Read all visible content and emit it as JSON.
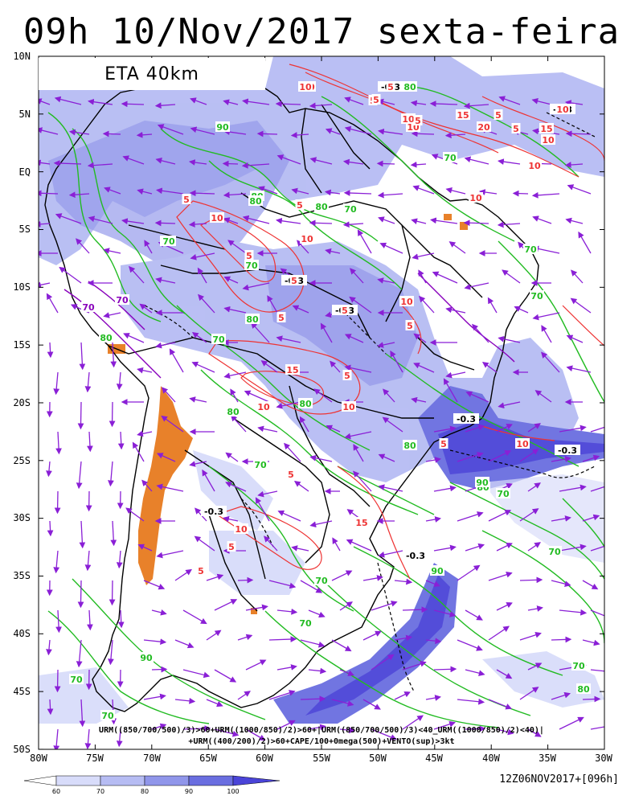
{
  "title": "09h 10/Nov/2017 sexta-feira",
  "model_label": "ETA 40km",
  "lat_ticks": [
    "10N",
    "5N",
    "EQ",
    "5S",
    "10S",
    "15S",
    "20S",
    "25S",
    "30S",
    "35S",
    "40S",
    "45S",
    "50S"
  ],
  "lon_ticks": [
    "80W",
    "75W",
    "70W",
    "65W",
    "60W",
    "55W",
    "50W",
    "45W",
    "40W",
    "35W",
    "30W"
  ],
  "formula_line1": "URM((850/700/500)/3)>60+URM((1000/850)/2)>60+|URM((850/700/500)/3)<40_URM((1000/850)/2)<40)|",
  "formula_line2": "+URM((400/200)/2)>60+CAPE/100+0mega(500)+VENTO(sup)>3kt",
  "run_info": "12Z06NOV2017+[096h]",
  "colorbar": {
    "ticks": [
      "60",
      "70",
      "80",
      "90",
      "100"
    ],
    "colors": [
      "#d8dcfa",
      "#b6bcf3",
      "#9096ea",
      "#6a6ee0",
      "#4a44d8"
    ]
  },
  "contour_labels": [
    {
      "text": "-0.3",
      "type": "omega"
    },
    {
      "text": "-0.3",
      "type": "omega"
    },
    {
      "text": "-0.3",
      "type": "omega"
    },
    {
      "text": "-0.3",
      "type": "omega"
    },
    {
      "text": "-0.3",
      "type": "omega"
    },
    {
      "text": "-0.3",
      "type": "omega"
    },
    {
      "text": "-0.3",
      "type": "omega"
    },
    {
      "text": "-0.3",
      "type": "omega"
    },
    {
      "text": "80",
      "type": "rh"
    },
    {
      "text": "90",
      "type": "rh"
    },
    {
      "text": "70",
      "type": "rh"
    },
    {
      "text": "80",
      "type": "rh"
    },
    {
      "text": "80",
      "type": "rh"
    },
    {
      "text": "70",
      "type": "rh"
    },
    {
      "text": "80",
      "type": "rh"
    },
    {
      "text": "80",
      "type": "rh"
    },
    {
      "text": "80",
      "type": "rh"
    },
    {
      "text": "70",
      "type": "rh"
    },
    {
      "text": "80",
      "type": "rh"
    },
    {
      "text": "80",
      "type": "rh"
    },
    {
      "text": "90",
      "type": "rh"
    },
    {
      "text": "70",
      "type": "rh"
    },
    {
      "text": "90",
      "type": "rh"
    },
    {
      "text": "80",
      "type": "rh"
    },
    {
      "text": "90",
      "type": "rh"
    },
    {
      "text": "70",
      "type": "rh"
    },
    {
      "text": "70",
      "type": "rh"
    },
    {
      "text": "80",
      "type": "rh"
    },
    {
      "text": "70",
      "type": "rh"
    },
    {
      "text": "90",
      "type": "rh"
    },
    {
      "text": "70",
      "type": "rh"
    },
    {
      "text": "70",
      "type": "rh"
    },
    {
      "text": "80",
      "type": "rh"
    },
    {
      "text": "70",
      "type": "rh"
    },
    {
      "text": "70",
      "type": "rh"
    },
    {
      "text": "80",
      "type": "rh"
    },
    {
      "text": "70",
      "type": "rh"
    },
    {
      "text": "70",
      "type": "rh"
    },
    {
      "text": "80",
      "type": "rh"
    },
    {
      "text": "70",
      "type": "rh"
    },
    {
      "text": "70",
      "type": "rh"
    },
    {
      "text": "70",
      "type": "rh"
    },
    {
      "text": "70",
      "type": "rh_upper"
    },
    {
      "text": "70",
      "type": "rh_upper"
    },
    {
      "text": "10",
      "type": "cape"
    },
    {
      "text": "5",
      "type": "cape"
    },
    {
      "text": "10",
      "type": "cape"
    },
    {
      "text": "5",
      "type": "cape"
    },
    {
      "text": "10",
      "type": "cape"
    },
    {
      "text": "5",
      "type": "cape"
    },
    {
      "text": "10",
      "type": "cape"
    },
    {
      "text": "5",
      "type": "cape"
    },
    {
      "text": "15",
      "type": "cape"
    },
    {
      "text": "5",
      "type": "cape"
    },
    {
      "text": "10",
      "type": "cape"
    },
    {
      "text": "5",
      "type": "cape"
    },
    {
      "text": "10",
      "type": "cape"
    },
    {
      "text": "10",
      "type": "cape"
    },
    {
      "text": "15",
      "type": "cape"
    },
    {
      "text": "20",
      "type": "cape"
    },
    {
      "text": "15",
      "type": "cape"
    },
    {
      "text": "10",
      "type": "cape"
    },
    {
      "text": "5",
      "type": "cape"
    },
    {
      "text": "10",
      "type": "cape"
    },
    {
      "text": "5",
      "type": "cape"
    },
    {
      "text": "10",
      "type": "cape"
    },
    {
      "text": "5",
      "type": "cape"
    },
    {
      "text": "5",
      "type": "cape"
    },
    {
      "text": "5",
      "type": "cape"
    },
    {
      "text": "10",
      "type": "cape"
    },
    {
      "text": "10",
      "type": "cape"
    },
    {
      "text": "5",
      "type": "cape"
    },
    {
      "text": "5",
      "type": "cape"
    },
    {
      "text": "10",
      "type": "cape"
    },
    {
      "text": "10",
      "type": "cape"
    },
    {
      "text": "5",
      "type": "cape"
    },
    {
      "text": "5",
      "type": "cape"
    },
    {
      "text": "15",
      "type": "cape"
    },
    {
      "text": "5",
      "type": "cape"
    },
    {
      "text": "10",
      "type": "cape"
    },
    {
      "text": "5",
      "type": "cape"
    },
    {
      "text": "5",
      "type": "cape"
    }
  ],
  "colors": {
    "rh_contour": "#22bb22",
    "rh_upper_contour": "#8800bb",
    "cape_contour": "#ee3333",
    "omega_contour": "#000000",
    "wind_vector": "#8a1fd6",
    "dry_shade": "#e8812a",
    "land_outline": "#000000"
  }
}
